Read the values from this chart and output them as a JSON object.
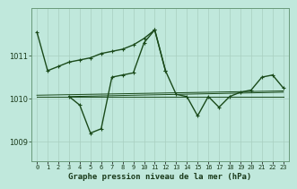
{
  "title": "Graphe pression niveau de la mer (hPa)",
  "bg_color": "#c0e8dc",
  "plot_bg_color": "#c0e8dc",
  "line_color": "#1a4a1a",
  "grid_color": "#a8cfc0",
  "text_color": "#1a3a1a",
  "xlim": [
    -0.5,
    23.5
  ],
  "ylim": [
    1008.55,
    1012.1
  ],
  "yticks": [
    1009,
    1010,
    1011
  ],
  "xtick_labels": [
    "0",
    "1",
    "2",
    "3",
    "4",
    "5",
    "6",
    "7",
    "8",
    "9",
    "10",
    "11",
    "12",
    "13",
    "14",
    "15",
    "16",
    "17",
    "18",
    "19",
    "20",
    "21",
    "22",
    "23"
  ],
  "line1_x": [
    0,
    1,
    2,
    3,
    4,
    5,
    6,
    7,
    8,
    9,
    10,
    11,
    12
  ],
  "line1_y": [
    1011.55,
    1010.65,
    1010.75,
    1010.85,
    1010.9,
    1010.95,
    1011.05,
    1011.1,
    1011.15,
    1011.25,
    1011.4,
    1011.6,
    1010.65
  ],
  "line2_x": [
    3,
    4,
    5,
    6,
    7,
    8,
    9,
    10,
    11,
    12,
    13,
    14,
    15,
    16,
    17,
    18,
    19,
    20,
    21,
    22,
    23
  ],
  "line2_y": [
    1010.05,
    1009.85,
    1009.2,
    1009.3,
    1010.5,
    1010.55,
    1010.6,
    1011.3,
    1011.6,
    1010.65,
    1010.1,
    1010.05,
    1009.6,
    1010.05,
    1009.8,
    1010.05,
    1010.15,
    1010.2,
    1010.5,
    1010.55,
    1010.25
  ],
  "trend1_x": [
    0,
    23
  ],
  "trend1_y": [
    1010.05,
    1010.05
  ],
  "trend2_x": [
    0,
    23
  ],
  "trend2_y": [
    1010.08,
    1010.18
  ],
  "trend3_x": [
    3,
    23
  ],
  "trend3_y": [
    1010.05,
    1010.15
  ]
}
